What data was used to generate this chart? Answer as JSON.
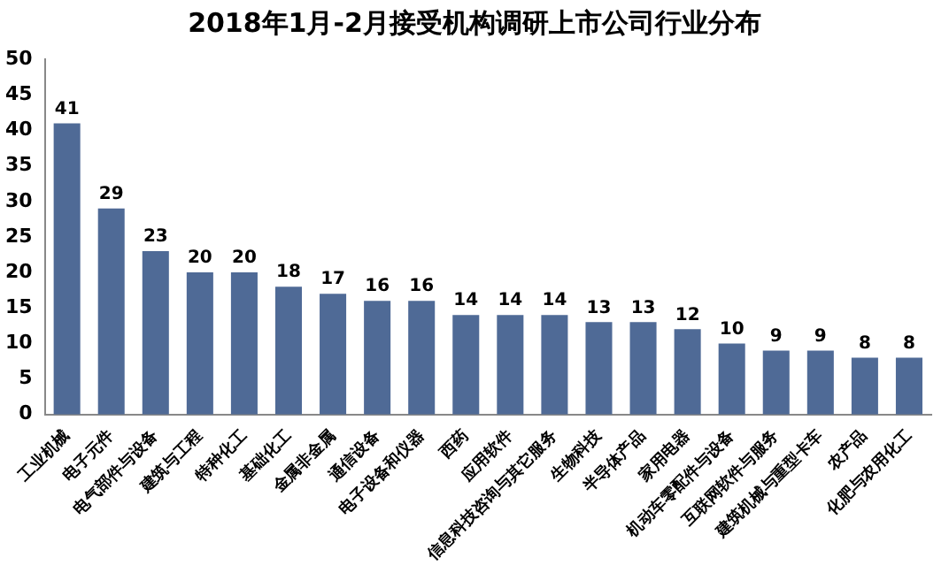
{
  "chart_data": {
    "type": "bar",
    "title": "2018年1月-2月接受机构调研上市公司行业分布",
    "categories": [
      "工业机械",
      "电子元件",
      "电气部件与设备",
      "建筑与工程",
      "特种化工",
      "基础化工",
      "金属非金属",
      "通信设备",
      "电子设备和仪器",
      "西药",
      "应用软件",
      "信息科技咨询与其它服务",
      "生物科技",
      "半导体产品",
      "家用电器",
      "机动车零配件与设备",
      "互联网软件与服务",
      "建筑机械与重型卡车",
      "农产品",
      "化肥与农用化工"
    ],
    "values": [
      41,
      29,
      23,
      20,
      20,
      18,
      17,
      16,
      16,
      14,
      14,
      14,
      13,
      13,
      12,
      10,
      9,
      9,
      8,
      8
    ],
    "color": "#4f6a96",
    "ylim": [
      0,
      50
    ],
    "yticks": [
      0,
      5,
      10,
      15,
      20,
      25,
      30,
      35,
      40,
      45,
      50
    ],
    "grid": false,
    "data_labels": true,
    "legend": false
  }
}
